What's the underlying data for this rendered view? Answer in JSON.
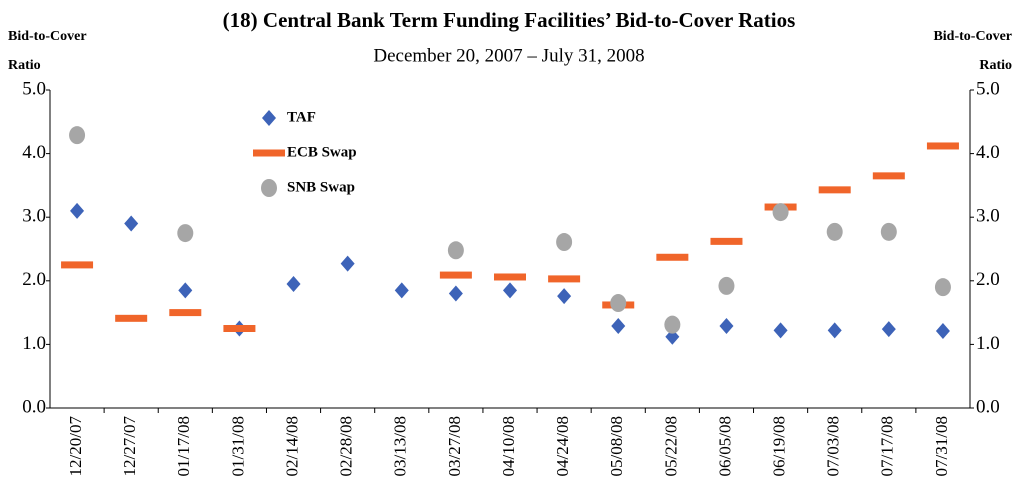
{
  "chart_data": {
    "type": "scatter",
    "title": "(18) Central Bank Term Funding Facilities’ Bid-to-Cover Ratios",
    "subtitle": "December 20, 2007 – July 31, 2008",
    "y_label": [
      "Bid-to-Cover",
      "Ratio"
    ],
    "y2_label": [
      "Bid-to-Cover",
      "Ratio"
    ],
    "categories": [
      "12/20/07",
      "12/27/07",
      "01/17/08",
      "01/31/08",
      "02/14/08",
      "02/28/08",
      "03/13/08",
      "03/27/08",
      "04/10/08",
      "04/24/08",
      "05/08/08",
      "05/22/08",
      "06/05/08",
      "06/19/08",
      "07/03/08",
      "07/17/08",
      "07/31/08"
    ],
    "series": [
      {
        "name": "TAF",
        "marker": "diamond",
        "color": "#3d63b8",
        "values": [
          3.1,
          2.9,
          1.85,
          1.25,
          1.95,
          2.27,
          1.85,
          1.8,
          1.85,
          1.76,
          1.29,
          1.12,
          1.29,
          1.22,
          1.22,
          1.24,
          1.21
        ]
      },
      {
        "name": "ECB Swap",
        "marker": "dash",
        "color": "#f0652a",
        "values": [
          2.25,
          1.41,
          1.5,
          1.25,
          null,
          null,
          null,
          2.09,
          2.06,
          2.03,
          1.62,
          2.37,
          2.62,
          3.16,
          3.43,
          3.65,
          4.12
        ]
      },
      {
        "name": "SNB Swap",
        "marker": "circle",
        "color": "#a6a6a6",
        "values": [
          4.29,
          null,
          2.75,
          null,
          null,
          null,
          null,
          2.48,
          null,
          2.61,
          1.65,
          1.31,
          1.92,
          3.08,
          2.77,
          2.77,
          1.9
        ]
      }
    ],
    "ylim": [
      0,
      5
    ],
    "yticks": [
      {
        "value": 0,
        "label": "0.0"
      },
      {
        "value": 1,
        "label": "1.0"
      },
      {
        "value": 2,
        "label": "2.0"
      },
      {
        "value": 3,
        "label": "3.0"
      },
      {
        "value": 4,
        "label": "4.0"
      },
      {
        "value": 5,
        "label": "5.0"
      }
    ],
    "y2lim": [
      0,
      5
    ],
    "y2ticks": [
      {
        "value": 0,
        "label": "0.0"
      },
      {
        "value": 1,
        "label": "1.0"
      },
      {
        "value": 2,
        "label": "2.0"
      },
      {
        "value": 3,
        "label": "3.0"
      },
      {
        "value": 4,
        "label": "4.0"
      },
      {
        "value": 5,
        "label": "5.0"
      }
    ],
    "grid": false,
    "legend": "top-left"
  }
}
